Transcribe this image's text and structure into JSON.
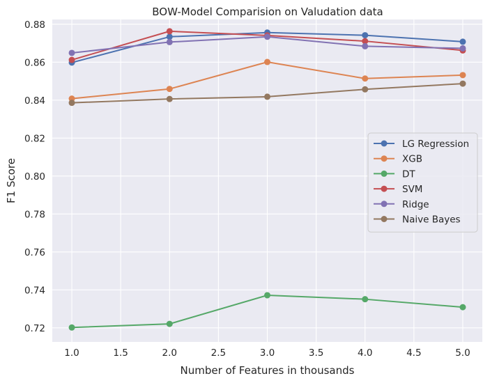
{
  "chart_data": {
    "type": "line",
    "title": "BOW-Model Comparision on Valudation data",
    "xlabel": "Number of Features in thousands",
    "ylabel": "F1 Score",
    "x": [
      1.0,
      2.0,
      3.0,
      4.0,
      5.0
    ],
    "xlim": [
      0.8,
      5.2
    ],
    "ylim": [
      0.7126,
      0.8825
    ],
    "xticks": [
      1.0,
      1.5,
      2.0,
      2.5,
      3.0,
      3.5,
      4.0,
      4.5,
      5.0
    ],
    "xtick_labels": [
      "1.0",
      "1.5",
      "2.0",
      "2.5",
      "3.0",
      "3.5",
      "4.0",
      "4.5",
      "5.0"
    ],
    "yticks": [
      0.72,
      0.74,
      0.76,
      0.78,
      0.8,
      0.82,
      0.84,
      0.86,
      0.88
    ],
    "ytick_labels": [
      "0.72",
      "0.74",
      "0.76",
      "0.78",
      "0.80",
      "0.82",
      "0.84",
      "0.86",
      "0.88"
    ],
    "grid": true,
    "legend_position": "center-right",
    "background_color": "#eaeaf2",
    "grid_color": "#ffffff",
    "series": [
      {
        "name": "LG Regression",
        "color": "#4c72b0",
        "values": [
          0.8598,
          0.8734,
          0.8756,
          0.8742,
          0.8708
        ]
      },
      {
        "name": "XGB",
        "color": "#dd8452",
        "values": [
          0.8408,
          0.8459,
          0.8601,
          0.8514,
          0.8532
        ]
      },
      {
        "name": "DT",
        "color": "#55a868",
        "values": [
          0.7202,
          0.7221,
          0.7372,
          0.7351,
          0.7309
        ]
      },
      {
        "name": "SVM",
        "color": "#c44e52",
        "values": [
          0.8612,
          0.8763,
          0.8741,
          0.8711,
          0.8662
        ]
      },
      {
        "name": "Ridge",
        "color": "#8172b3",
        "values": [
          0.8649,
          0.8706,
          0.8734,
          0.8684,
          0.8673
        ]
      },
      {
        "name": "Naive Bayes",
        "color": "#937860",
        "values": [
          0.8386,
          0.8406,
          0.8418,
          0.8457,
          0.8487
        ]
      }
    ]
  }
}
